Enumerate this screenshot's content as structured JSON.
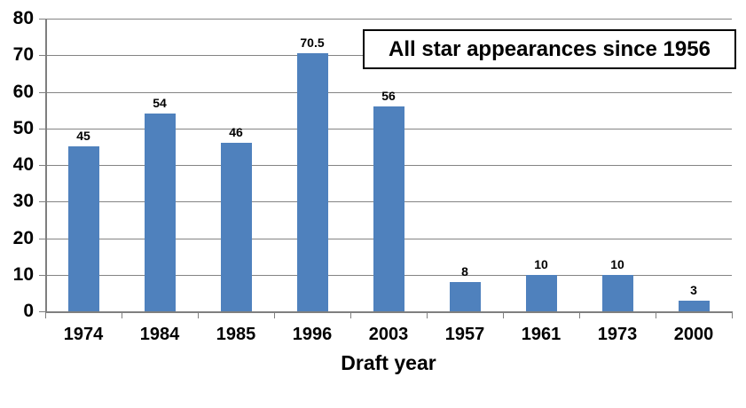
{
  "chart_data": {
    "type": "bar",
    "title": "All star appearances since 1956",
    "xlabel": "Draft year",
    "ylabel": "",
    "categories": [
      "1974",
      "1984",
      "1985",
      "1996",
      "2003",
      "1957",
      "1961",
      "1973",
      "2000"
    ],
    "values": [
      45,
      54,
      46,
      70.5,
      56,
      8,
      10,
      10,
      3
    ],
    "data_labels": [
      "45",
      "54",
      "46",
      "70.5",
      "56",
      "8",
      "10",
      "10",
      "3"
    ],
    "ylim": [
      0,
      80
    ],
    "yticks": [
      0,
      10,
      20,
      30,
      40,
      50,
      60,
      70,
      80
    ],
    "grid": true,
    "legend": "none",
    "colors": {
      "bar": "#4F81BD",
      "gridline": "#848484",
      "axis": "#7F7F7F",
      "text": "#000000",
      "background": "#FFFFFF",
      "title_border": "#000000"
    }
  }
}
